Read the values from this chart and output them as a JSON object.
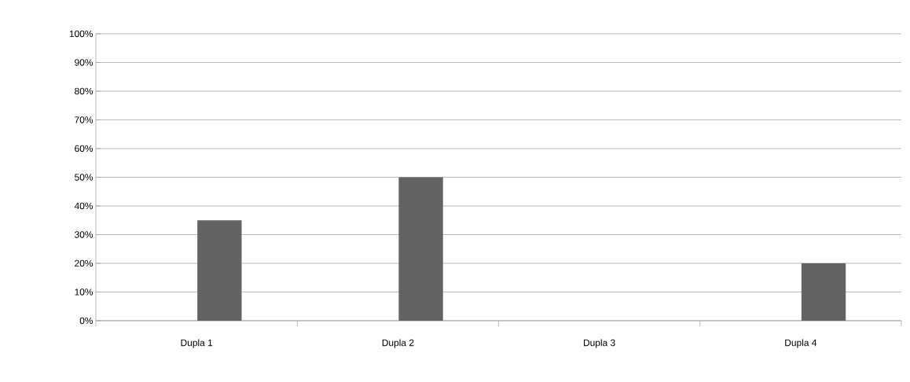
{
  "chart_data": {
    "type": "bar",
    "categories": [
      "Dupla 1",
      "Dupla 2",
      "Dupla 3",
      "Dupla 4"
    ],
    "values": [
      35,
      50,
      0,
      20
    ],
    "color": "#636363",
    "ylim": [
      0,
      100
    ],
    "yticks": [
      {
        "value": 0,
        "label": "0%"
      },
      {
        "value": 10,
        "label": "10%"
      },
      {
        "value": 20,
        "label": "20%"
      },
      {
        "value": 30,
        "label": "30%"
      },
      {
        "value": 40,
        "label": "40%"
      },
      {
        "value": 50,
        "label": "50%"
      },
      {
        "value": 60,
        "label": "60%"
      },
      {
        "value": 70,
        "label": "70%"
      },
      {
        "value": 80,
        "label": "80%"
      },
      {
        "value": 90,
        "label": "90%"
      },
      {
        "value": 100,
        "label": "100%"
      }
    ],
    "grid": "y"
  }
}
